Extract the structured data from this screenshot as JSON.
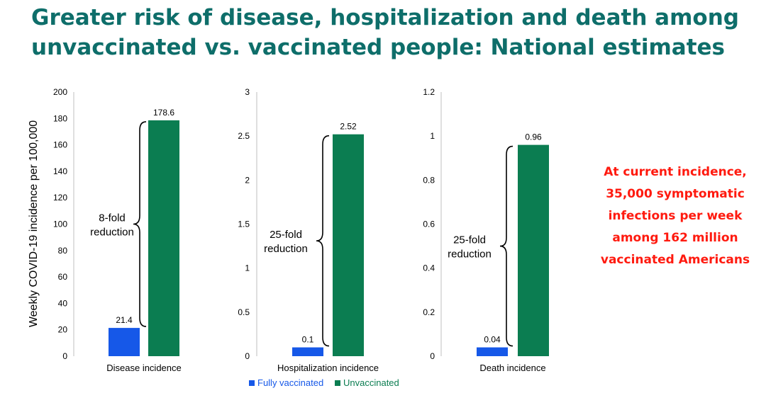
{
  "title_lines": [
    "Greater risk of disease, hospitalization and death among",
    "unvaccinated vs. vaccinated people: National estimates"
  ],
  "callout_lines": [
    "At current incidence,",
    "35,000 symptomatic",
    "infections per week",
    "among 162 million",
    "vaccinated Americans"
  ],
  "colors": {
    "title": "#0e6e6a",
    "callout": "#ff1a0f",
    "fully_vaccinated": "#1658e8",
    "unvaccinated": "#0b7d51"
  },
  "legend": [
    "Fully vaccinated",
    "Unvaccinated"
  ],
  "chart_data": [
    {
      "type": "bar",
      "categories": [
        "Disease incidence"
      ],
      "series": [
        {
          "name": "Fully vaccinated",
          "values": [
            21.4
          ],
          "labels": [
            "21.4"
          ]
        },
        {
          "name": "Unvaccinated",
          "values": [
            178.6
          ],
          "labels": [
            "178.6"
          ]
        }
      ],
      "ylabel": "Weekly COVID-19 incidence per 100,000",
      "ylim": [
        0,
        200
      ],
      "yticks": [
        "0",
        "20",
        "40",
        "60",
        "80",
        "100",
        "120",
        "140",
        "160",
        "180",
        "200"
      ],
      "annotation": [
        "8-fold",
        "reduction"
      ],
      "grid": false
    },
    {
      "type": "bar",
      "categories": [
        "Hospitalization incidence"
      ],
      "series": [
        {
          "name": "Fully vaccinated",
          "values": [
            0.1
          ],
          "labels": [
            "0.1"
          ]
        },
        {
          "name": "Unvaccinated",
          "values": [
            2.52
          ],
          "labels": [
            "2.52"
          ]
        }
      ],
      "ylabel": "",
      "ylim": [
        0,
        3
      ],
      "yticks": [
        "0",
        "0.5",
        "1",
        "1.5",
        "2",
        "2.5",
        "3"
      ],
      "annotation": [
        "25-fold",
        "reduction"
      ],
      "grid": false
    },
    {
      "type": "bar",
      "categories": [
        "Death incidence"
      ],
      "series": [
        {
          "name": "Fully vaccinated",
          "values": [
            0.04
          ],
          "labels": [
            "0.04"
          ]
        },
        {
          "name": "Unvaccinated",
          "values": [
            0.96
          ],
          "labels": [
            "0.96"
          ]
        }
      ],
      "ylabel": "",
      "ylim": [
        0,
        1.2
      ],
      "yticks": [
        "0",
        "0.2",
        "0.4",
        "0.6",
        "0.8",
        "1",
        "1.2"
      ],
      "annotation": [
        "25-fold",
        "reduction"
      ],
      "grid": false
    }
  ]
}
